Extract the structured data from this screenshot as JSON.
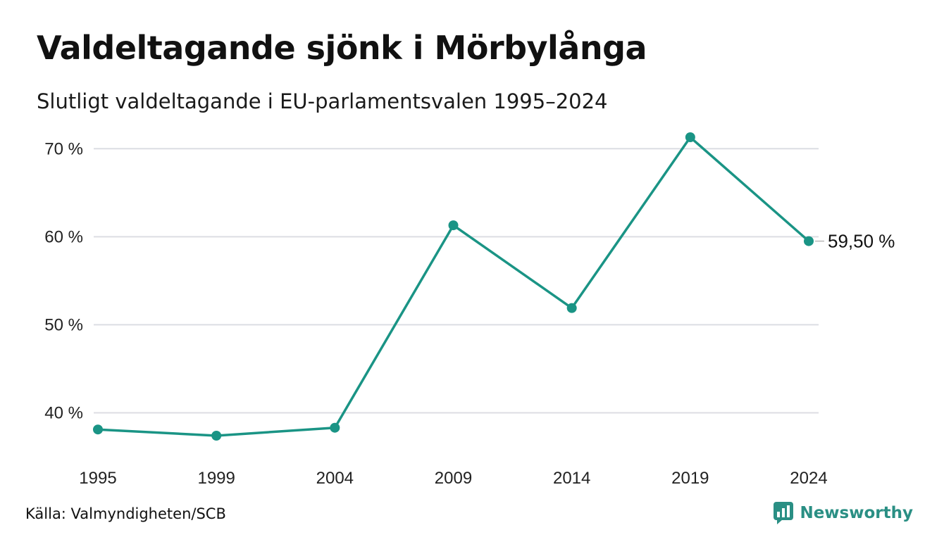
{
  "header": {
    "title": "Valdeltagande sjönk i Mörbylånga",
    "subtitle": "Slutligt valdeltagande i EU-parlamentsvalen 1995–2024"
  },
  "footer": {
    "source": "Källa: Valmyndigheten/SCB",
    "brand": "Newsworthy",
    "brand_icon": "newsworthy-logo-icon"
  },
  "colors": {
    "line": "#1a9485",
    "grid": "#dcdde3",
    "brand": "#2a8f84"
  },
  "chart_data": {
    "type": "line",
    "title": "Valdeltagande sjönk i Mörbylånga",
    "subtitle": "Slutligt valdeltagande i EU-parlamentsvalen 1995–2024",
    "xlabel": "",
    "ylabel": "",
    "categories": [
      "1995",
      "1999",
      "2004",
      "2009",
      "2014",
      "2019",
      "2024"
    ],
    "series": [
      {
        "values": [
          38.1,
          37.4,
          38.3,
          61.3,
          51.9,
          71.3,
          59.5
        ]
      }
    ],
    "yticks": [
      {
        "value": 40,
        "label": "40 %"
      },
      {
        "value": 50,
        "label": "50 %"
      },
      {
        "value": 60,
        "label": "60 %"
      },
      {
        "value": 70,
        "label": "70 %"
      }
    ],
    "ylim": [
      35.8,
      72.5
    ],
    "grid": true,
    "legend": "none",
    "end_label": "59,50 %"
  }
}
